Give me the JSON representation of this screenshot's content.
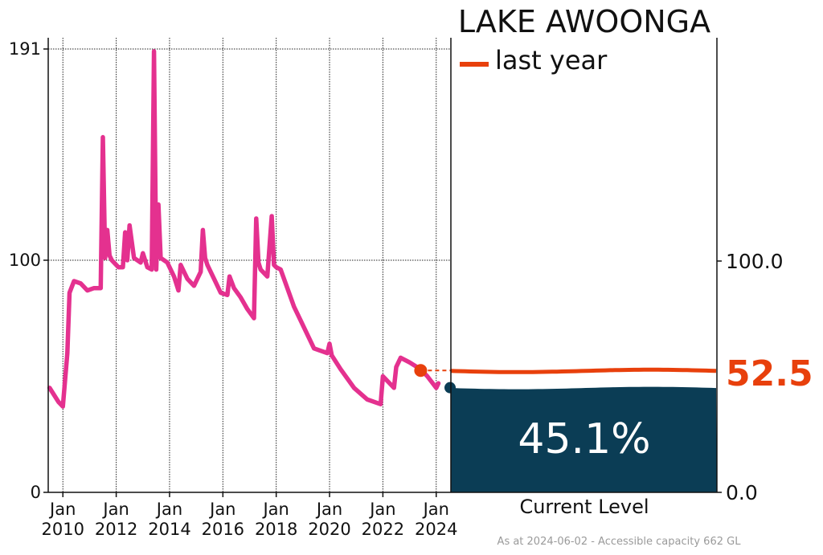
{
  "chart_data": {
    "type": "line",
    "title": "LAKE AWOONGA",
    "legend": {
      "label": "last year",
      "color": "#e8400c",
      "placement": "top-right"
    },
    "series": [
      {
        "color": "#e4318f",
        "x": [
          "2009-07",
          "2009-09",
          "2009-11",
          "2010-01",
          "2010-03",
          "2010-04",
          "2010-06",
          "2010-09",
          "2010-12",
          "2011-03",
          "2011-06",
          "2011-07",
          "2011-08",
          "2011-09",
          "2011-10",
          "2011-11",
          "2011-12",
          "2012-02",
          "2012-04",
          "2012-05",
          "2012-06",
          "2012-07",
          "2012-09",
          "2012-12",
          "2013-01",
          "2013-03",
          "2013-05",
          "2013-06",
          "2013-07",
          "2013-08",
          "2013-09",
          "2013-12",
          "2014-03",
          "2014-04",
          "2014-05",
          "2014-06",
          "2014-09",
          "2014-12",
          "2015-03",
          "2015-04",
          "2015-05",
          "2015-06",
          "2015-09",
          "2015-12",
          "2016-03",
          "2016-04",
          "2016-06",
          "2016-09",
          "2016-12",
          "2017-03",
          "2017-04",
          "2017-05",
          "2017-06",
          "2017-09",
          "2017-11",
          "2017-12",
          "2018-01",
          "2018-03",
          "2018-06",
          "2018-09",
          "2018-12",
          "2019-06",
          "2019-12",
          "2020-01",
          "2020-02",
          "2020-06",
          "2020-12",
          "2021-06",
          "2021-12",
          "2022-01",
          "2022-02",
          "2022-06",
          "2022-07",
          "2022-09",
          "2023-01",
          "2023-06",
          "2023-09",
          "2024-01",
          "2024-02"
        ],
        "y": [
          45,
          42,
          39,
          37,
          60,
          86,
          91,
          90,
          87,
          88,
          88,
          153,
          101,
          113,
          102,
          100,
          99,
          97,
          97,
          112,
          100,
          115,
          101,
          99,
          103,
          97,
          96,
          190,
          96,
          124,
          101,
          99,
          93,
          90,
          87,
          98,
          92,
          89,
          95,
          113,
          101,
          98,
          92,
          86,
          85,
          93,
          88,
          84,
          79,
          75,
          118,
          99,
          96,
          93,
          119,
          98,
          97,
          96,
          88,
          80,
          74,
          62,
          60,
          64,
          59,
          53,
          45,
          40,
          38,
          50,
          49,
          45,
          54,
          58,
          56,
          53,
          50,
          45,
          47
        ]
      }
    ],
    "y_left": {
      "ticks": [
        "191",
        "100",
        "0"
      ],
      "ylim": [
        0,
        191
      ]
    },
    "x_ticks": [
      {
        "line1": "Jan",
        "line2": "2010",
        "date": "2010-01"
      },
      {
        "line1": "Jan",
        "line2": "2012",
        "date": "2012-01"
      },
      {
        "line1": "Jan",
        "line2": "2014",
        "date": "2014-01"
      },
      {
        "line1": "Jan",
        "line2": "2016",
        "date": "2016-01"
      },
      {
        "line1": "Jan",
        "line2": "2018",
        "date": "2018-01"
      },
      {
        "line1": "Jan",
        "line2": "2020",
        "date": "2020-01"
      },
      {
        "line1": "Jan",
        "line2": "2022",
        "date": "2022-01"
      },
      {
        "line1": "Jan",
        "line2": "2024",
        "date": "2024-01"
      }
    ],
    "last_year_point": {
      "date": "2023-06",
      "value": 52.5
    },
    "current_point": {
      "date": "2024-06",
      "value": 45.1
    },
    "gauge": {
      "current_percent": 45.1,
      "current_label": "45.1%",
      "last_year_value": 52.5,
      "last_year_label": "52.5",
      "xlabel": "Current Level",
      "ticks": [
        "100.0",
        "0.0"
      ],
      "ylim": [
        0,
        100
      ],
      "fill_color": "#0b3d55",
      "last_year_color": "#e8400c"
    },
    "footer": "As at 2024-06-02 - Accessible capacity 662 GL"
  }
}
